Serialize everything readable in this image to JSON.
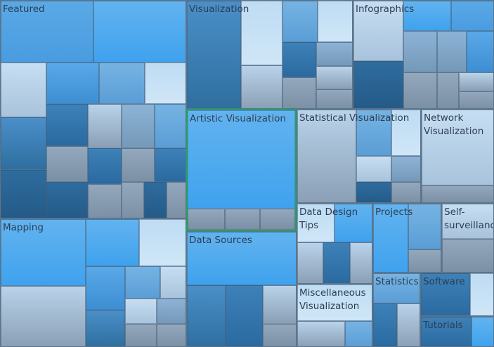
{
  "treemap": {
    "selected_group": "Artistic Visualization",
    "groups": {
      "featured": "Featured",
      "mapping": "Mapping",
      "visualization": "Visualization",
      "infographics": "Infographics",
      "artistic_visualization": "Artistic Visualization",
      "statistical_visualization": "Statistical Visualization",
      "network_visualization": "Network\nVisualization",
      "data_sources": "Data Sources",
      "data_design_tips": "Data Design\nTips",
      "projects": "Projects",
      "self_surveillance": "Self-\nsurveillance",
      "miscellaneous_visualization": "Miscellaneous\nVisualization",
      "statistics": "Statistics",
      "software": "Software",
      "tutorials": "Tutorials"
    },
    "colors": {
      "selected_border": "#27a060",
      "label_text": "#2d3e52"
    }
  }
}
